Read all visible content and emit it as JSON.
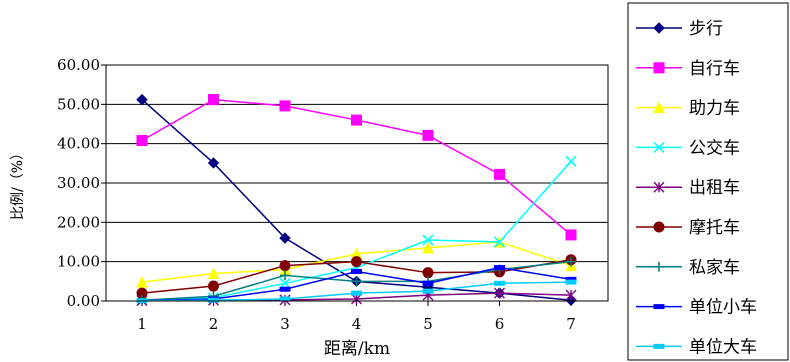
{
  "chart_data": {
    "type": "line",
    "title": "",
    "xlabel": "距离/km",
    "ylabel": "比例/（%）",
    "x": [
      1,
      2,
      3,
      4,
      5,
      6,
      7
    ],
    "ylim": [
      0,
      60
    ],
    "yticks": [
      "0.00",
      "10.00",
      "20.00",
      "30.00",
      "40.00",
      "50.00",
      "60.00"
    ],
    "grid": true,
    "legend_position": "right",
    "series": [
      {
        "name": "步行",
        "color": "#000080",
        "marker": "diamond",
        "values": [
          51.2,
          35.1,
          16.0,
          5.0,
          3.5,
          2.0,
          0.2
        ]
      },
      {
        "name": "自行车",
        "color": "#ff00ff",
        "marker": "square",
        "values": [
          40.8,
          51.2,
          49.6,
          46.0,
          42.1,
          32.2,
          16.8
        ]
      },
      {
        "name": "助力车",
        "color": "#ffff00",
        "marker": "triangle",
        "values": [
          4.8,
          7.0,
          8.0,
          12.0,
          13.5,
          15.0,
          9.0
        ]
      },
      {
        "name": "公交车",
        "color": "#00ffff",
        "marker": "x",
        "values": [
          0.2,
          0.8,
          4.5,
          8.5,
          15.5,
          15.0,
          35.5
        ]
      },
      {
        "name": "出租车",
        "color": "#800080",
        "marker": "asterisk",
        "values": [
          0.1,
          0.2,
          0.3,
          0.5,
          1.5,
          2.0,
          1.5
        ]
      },
      {
        "name": "摩托车",
        "color": "#800000",
        "marker": "circle",
        "values": [
          2.0,
          3.8,
          9.0,
          10.0,
          7.2,
          7.4,
          10.5
        ]
      },
      {
        "name": "私家车",
        "color": "#008080",
        "marker": "plus",
        "values": [
          0.2,
          1.2,
          6.5,
          5.0,
          5.0,
          8.0,
          10.0
        ]
      },
      {
        "name": "单位小车",
        "color": "#0000ff",
        "marker": "dash",
        "values": [
          0.1,
          0.5,
          3.0,
          7.5,
          4.5,
          8.5,
          5.5
        ]
      },
      {
        "name": "单位大车",
        "color": "#00ccff",
        "marker": "dash",
        "values": [
          0.1,
          0.2,
          0.5,
          2.0,
          2.5,
          4.5,
          4.8
        ]
      }
    ]
  }
}
